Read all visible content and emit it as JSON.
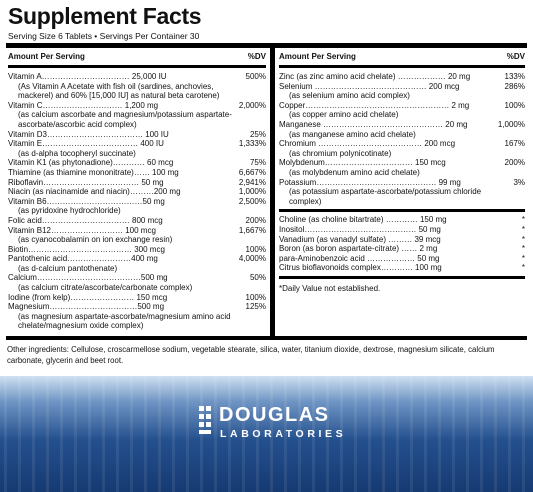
{
  "label": {
    "title": "Supplement Facts",
    "serving": "Serving Size 6 Tablets • Servings Per Container 30",
    "header_amount": "Amount Per Serving",
    "header_dv": "%DV",
    "left": [
      {
        "name": "Vitamin A…………………………… 25,000 IU",
        "dv": "500%",
        "sub": "(As Vitamin A Acetate with fish oil (sardines, anchovies, mackerel) and 60% [15,000 IU] as natural beta carotene)"
      },
      {
        "name": "Vitamin C………………………… 1,200 mg",
        "dv": "2,000%",
        "sub": "(as calcium ascorbate and magnesium/potassium aspartate-ascorbate/ascorbic acid complex)"
      },
      {
        "name": "Vitamin D3……………………………… 100 IU",
        "dv": "25%",
        "sub": ""
      },
      {
        "name": "Vitamin E……………………………… 400 IU",
        "dv": "1,333%",
        "sub": "(as d-alpha tocopheryl succinate)"
      },
      {
        "name": "Vitamin K1 (as phytonadione)………… 60 mcg",
        "dv": "75%",
        "sub": ""
      },
      {
        "name": "Thiamine (as thiamine mononitrate)…… 100 mg",
        "dv": "6,667%",
        "sub": ""
      },
      {
        "name": "Riboflavin……………………………… 50 mg",
        "dv": "2,941%",
        "sub": ""
      },
      {
        "name": "Niacin (as niacinamide and niacin)………200 mg",
        "dv": "1,000%",
        "sub": ""
      },
      {
        "name": "Vitamin B6………………………………50 mg",
        "dv": "2,500%",
        "sub": "(as pyridoxine hydrochloride)"
      },
      {
        "name": "Folic acid…………………………… 800 mcg",
        "dv": "200%",
        "sub": ""
      },
      {
        "name": "Vitamin B12……………………… 100 mcg",
        "dv": "1,667%",
        "sub": "(as cyanocobalamin on ion exchange resin)"
      },
      {
        "name": "Biotin………………………………… 300 mcg",
        "dv": "100%",
        "sub": ""
      },
      {
        "name": "Pantothenic acid……………………400 mg",
        "dv": "4,000%",
        "sub": "(as d-calcium pantothenate)"
      },
      {
        "name": "Calcium…………………………………500 mg",
        "dv": "50%",
        "sub": "(as calcium citrate/ascorbate/carbonate complex)"
      },
      {
        "name": "Iodine (from kelp)…………………… 150 mcg",
        "dv": "100%",
        "sub": ""
      },
      {
        "name": "Magnesium……………………………500 mg",
        "dv": "125%",
        "sub": "(as magnesium aspartate-ascorbate/magnesium amino acid chelate/magnesium oxide complex)"
      }
    ],
    "right": [
      {
        "name": "Zinc (as zinc amino acid chelate) ……………… 20 mg",
        "dv": "133%",
        "sub": ""
      },
      {
        "name": "Selenium …………………………………… 200 mcg",
        "dv": "286%",
        "sub": "(as selenium amino acid complex)"
      },
      {
        "name": "Copper……………………………………………… 2 mg",
        "dv": "100%",
        "sub": "(as copper amino acid chelate)"
      },
      {
        "name": "Manganese ……………………………………… 20 mg",
        "dv": "1,000%",
        "sub": "(as manganese amino acid chelate)"
      },
      {
        "name": "Chromium ………………………………… 200 mcg",
        "dv": "167%",
        "sub": "(as chromium polynicotinate)"
      },
      {
        "name": "Molybdenum…………………………… 150 mcg",
        "dv": "200%",
        "sub": "(as molybdenum amino acid chelate)"
      },
      {
        "name": "Potassium……………………………………… 99 mg",
        "dv": "3%",
        "sub": "(as potassium aspartate-ascorbate/potassium chloride complex)"
      }
    ],
    "right_nodv": [
      {
        "name": "Choline (as choline bitartrate) ………… 150 mg",
        "dv": "*"
      },
      {
        "name": "Inositol…………………………………… 50 mg",
        "dv": "*"
      },
      {
        "name": "Vanadium (as vanadyl sulfate) ……… 39 mcg",
        "dv": "*"
      },
      {
        "name": "Boron (as boron aspartate-citrate) …… 2 mg",
        "dv": "*"
      },
      {
        "name": "para-Aminobenzoic acid ……………… 50 mg",
        "dv": "*"
      },
      {
        "name": "Citrus bioflavonoids complex………… 100 mg",
        "dv": "*"
      }
    ],
    "footnote": "*Daily Value not established.",
    "other": "Other ingredients: Cellulose, croscarmellose sodium, vegetable stearate, silica, water, titanium dioxide, dextrose, magnesium silicate, calcium carbonate, glycerin and beet root."
  },
  "brand": {
    "line1": "DOUGLAS",
    "line2": "LABORATORIES",
    "band_color": "#1f4a88"
  }
}
